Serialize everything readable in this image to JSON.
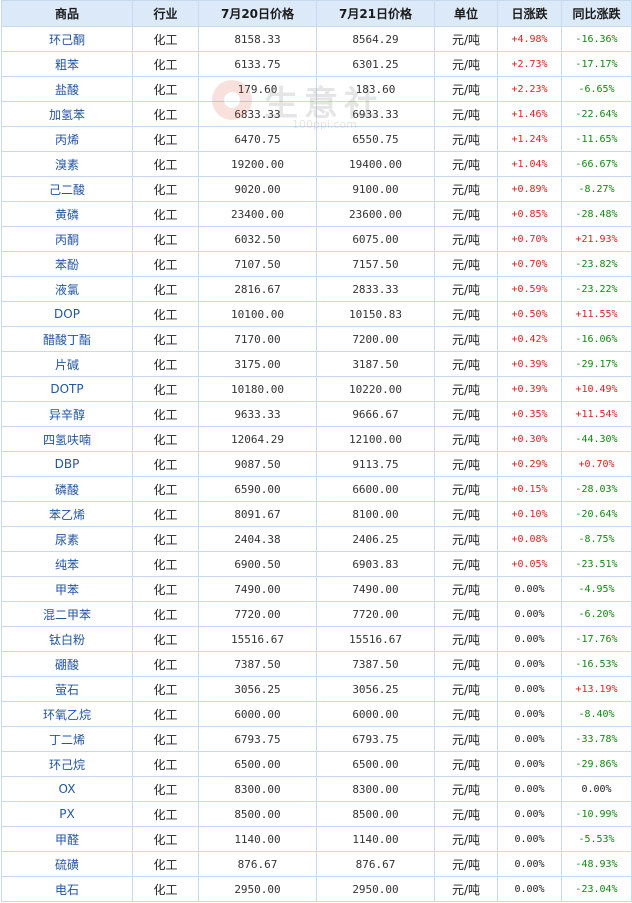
{
  "watermark": {
    "brand": "生意社",
    "url": "100ppi.com"
  },
  "headers": [
    "商品",
    "行业",
    "7月20日价格",
    "7月21日价格",
    "单位",
    "日涨跌",
    "同比涨跌"
  ],
  "rows": [
    {
      "name": "环己酮",
      "industry": "化工",
      "price_prev": "8158.33",
      "price_curr": "8564.29",
      "unit": "元/吨",
      "daily_change": "+4.98%",
      "yoy_change": "-16.36%"
    },
    {
      "name": "粗苯",
      "industry": "化工",
      "price_prev": "6133.75",
      "price_curr": "6301.25",
      "unit": "元/吨",
      "daily_change": "+2.73%",
      "yoy_change": "-17.17%"
    },
    {
      "name": "盐酸",
      "industry": "化工",
      "price_prev": "179.60",
      "price_curr": "183.60",
      "unit": "元/吨",
      "daily_change": "+2.23%",
      "yoy_change": "-6.65%"
    },
    {
      "name": "加氢苯",
      "industry": "化工",
      "price_prev": "6833.33",
      "price_curr": "6933.33",
      "unit": "元/吨",
      "daily_change": "+1.46%",
      "yoy_change": "-22.64%"
    },
    {
      "name": "丙烯",
      "industry": "化工",
      "price_prev": "6470.75",
      "price_curr": "6550.75",
      "unit": "元/吨",
      "daily_change": "+1.24%",
      "yoy_change": "-11.65%"
    },
    {
      "name": "溴素",
      "industry": "化工",
      "price_prev": "19200.00",
      "price_curr": "19400.00",
      "unit": "元/吨",
      "daily_change": "+1.04%",
      "yoy_change": "-66.67%"
    },
    {
      "name": "己二酸",
      "industry": "化工",
      "price_prev": "9020.00",
      "price_curr": "9100.00",
      "unit": "元/吨",
      "daily_change": "+0.89%",
      "yoy_change": "-8.27%"
    },
    {
      "name": "黄磷",
      "industry": "化工",
      "price_prev": "23400.00",
      "price_curr": "23600.00",
      "unit": "元/吨",
      "daily_change": "+0.85%",
      "yoy_change": "-28.48%"
    },
    {
      "name": "丙酮",
      "industry": "化工",
      "price_prev": "6032.50",
      "price_curr": "6075.00",
      "unit": "元/吨",
      "daily_change": "+0.70%",
      "yoy_change": "+21.93%"
    },
    {
      "name": "苯酚",
      "industry": "化工",
      "price_prev": "7107.50",
      "price_curr": "7157.50",
      "unit": "元/吨",
      "daily_change": "+0.70%",
      "yoy_change": "-23.82%"
    },
    {
      "name": "液氯",
      "industry": "化工",
      "price_prev": "2816.67",
      "price_curr": "2833.33",
      "unit": "元/吨",
      "daily_change": "+0.59%",
      "yoy_change": "-23.22%"
    },
    {
      "name": "DOP",
      "industry": "化工",
      "price_prev": "10100.00",
      "price_curr": "10150.83",
      "unit": "元/吨",
      "daily_change": "+0.50%",
      "yoy_change": "+11.55%"
    },
    {
      "name": "醋酸丁酯",
      "industry": "化工",
      "price_prev": "7170.00",
      "price_curr": "7200.00",
      "unit": "元/吨",
      "daily_change": "+0.42%",
      "yoy_change": "-16.06%"
    },
    {
      "name": "片碱",
      "industry": "化工",
      "price_prev": "3175.00",
      "price_curr": "3187.50",
      "unit": "元/吨",
      "daily_change": "+0.39%",
      "yoy_change": "-29.17%"
    },
    {
      "name": "DOTP",
      "industry": "化工",
      "price_prev": "10180.00",
      "price_curr": "10220.00",
      "unit": "元/吨",
      "daily_change": "+0.39%",
      "yoy_change": "+10.49%"
    },
    {
      "name": "异辛醇",
      "industry": "化工",
      "price_prev": "9633.33",
      "price_curr": "9666.67",
      "unit": "元/吨",
      "daily_change": "+0.35%",
      "yoy_change": "+11.54%"
    },
    {
      "name": "四氢呋喃",
      "industry": "化工",
      "price_prev": "12064.29",
      "price_curr": "12100.00",
      "unit": "元/吨",
      "daily_change": "+0.30%",
      "yoy_change": "-44.30%"
    },
    {
      "name": "DBP",
      "industry": "化工",
      "price_prev": "9087.50",
      "price_curr": "9113.75",
      "unit": "元/吨",
      "daily_change": "+0.29%",
      "yoy_change": "+0.70%"
    },
    {
      "name": "磷酸",
      "industry": "化工",
      "price_prev": "6590.00",
      "price_curr": "6600.00",
      "unit": "元/吨",
      "daily_change": "+0.15%",
      "yoy_change": "-28.03%"
    },
    {
      "name": "苯乙烯",
      "industry": "化工",
      "price_prev": "8091.67",
      "price_curr": "8100.00",
      "unit": "元/吨",
      "daily_change": "+0.10%",
      "yoy_change": "-20.64%"
    },
    {
      "name": "尿素",
      "industry": "化工",
      "price_prev": "2404.38",
      "price_curr": "2406.25",
      "unit": "元/吨",
      "daily_change": "+0.08%",
      "yoy_change": "-8.75%"
    },
    {
      "name": "纯苯",
      "industry": "化工",
      "price_prev": "6900.50",
      "price_curr": "6903.83",
      "unit": "元/吨",
      "daily_change": "+0.05%",
      "yoy_change": "-23.51%"
    },
    {
      "name": "甲苯",
      "industry": "化工",
      "price_prev": "7490.00",
      "price_curr": "7490.00",
      "unit": "元/吨",
      "daily_change": "0.00%",
      "yoy_change": "-4.95%"
    },
    {
      "name": "混二甲苯",
      "industry": "化工",
      "price_prev": "7720.00",
      "price_curr": "7720.00",
      "unit": "元/吨",
      "daily_change": "0.00%",
      "yoy_change": "-6.20%"
    },
    {
      "name": "钛白粉",
      "industry": "化工",
      "price_prev": "15516.67",
      "price_curr": "15516.67",
      "unit": "元/吨",
      "daily_change": "0.00%",
      "yoy_change": "-17.76%"
    },
    {
      "name": "硼酸",
      "industry": "化工",
      "price_prev": "7387.50",
      "price_curr": "7387.50",
      "unit": "元/吨",
      "daily_change": "0.00%",
      "yoy_change": "-16.53%"
    },
    {
      "name": "萤石",
      "industry": "化工",
      "price_prev": "3056.25",
      "price_curr": "3056.25",
      "unit": "元/吨",
      "daily_change": "0.00%",
      "yoy_change": "+13.19%"
    },
    {
      "name": "环氧乙烷",
      "industry": "化工",
      "price_prev": "6000.00",
      "price_curr": "6000.00",
      "unit": "元/吨",
      "daily_change": "0.00%",
      "yoy_change": "-8.40%"
    },
    {
      "name": "丁二烯",
      "industry": "化工",
      "price_prev": "6793.75",
      "price_curr": "6793.75",
      "unit": "元/吨",
      "daily_change": "0.00%",
      "yoy_change": "-33.78%"
    },
    {
      "name": "环己烷",
      "industry": "化工",
      "price_prev": "6500.00",
      "price_curr": "6500.00",
      "unit": "元/吨",
      "daily_change": "0.00%",
      "yoy_change": "-29.86%"
    },
    {
      "name": "OX",
      "industry": "化工",
      "price_prev": "8300.00",
      "price_curr": "8300.00",
      "unit": "元/吨",
      "daily_change": "0.00%",
      "yoy_change": "0.00%"
    },
    {
      "name": "PX",
      "industry": "化工",
      "price_prev": "8500.00",
      "price_curr": "8500.00",
      "unit": "元/吨",
      "daily_change": "0.00%",
      "yoy_change": "-10.99%"
    },
    {
      "name": "甲醛",
      "industry": "化工",
      "price_prev": "1140.00",
      "price_curr": "1140.00",
      "unit": "元/吨",
      "daily_change": "0.00%",
      "yoy_change": "-5.53%"
    },
    {
      "name": "硫磺",
      "industry": "化工",
      "price_prev": "876.67",
      "price_curr": "876.67",
      "unit": "元/吨",
      "daily_change": "0.00%",
      "yoy_change": "-48.93%"
    },
    {
      "name": "电石",
      "industry": "化工",
      "price_prev": "2950.00",
      "price_curr": "2950.00",
      "unit": "元/吨",
      "daily_change": "0.00%",
      "yoy_change": "-23.04%"
    }
  ],
  "colors": {
    "up": "#e02020",
    "down": "#118811",
    "flat": "#222222",
    "header_bg": "#dce9f8",
    "name_link": "#2255a4"
  }
}
